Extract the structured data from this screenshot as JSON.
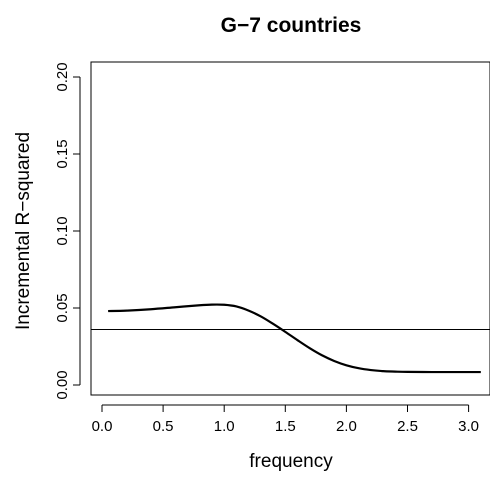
{
  "chart_data": {
    "type": "line",
    "title": "G−7 countries",
    "xlabel": "frequency",
    "ylabel": "Incremental R−squared",
    "xlim": [
      0,
      3.14159
    ],
    "ylim": [
      0,
      0.2
    ],
    "x_ticks": [
      0.0,
      0.5,
      1.0,
      1.5,
      2.0,
      2.5,
      3.0
    ],
    "x_tick_labels": [
      "0.0",
      "0.5",
      "1.0",
      "1.5",
      "2.0",
      "2.5",
      "3.0"
    ],
    "y_ticks": [
      0.0,
      0.05,
      0.1,
      0.15,
      0.2
    ],
    "y_tick_labels": [
      "0.00",
      "0.05",
      "0.10",
      "0.15",
      "0.20"
    ],
    "grid": false,
    "series": [
      {
        "color": "#000000",
        "x": [
          0.05,
          0.2,
          0.4,
          0.6,
          0.8,
          0.9,
          1.0,
          1.1,
          1.2,
          1.3,
          1.4,
          1.5,
          1.6,
          1.7,
          1.8,
          1.9,
          2.0,
          2.1,
          2.2,
          2.3,
          2.4,
          2.5,
          2.7,
          2.9,
          3.1
        ],
        "values": [
          0.048,
          0.0483,
          0.0492,
          0.0505,
          0.0518,
          0.0522,
          0.0521,
          0.051,
          0.0483,
          0.0445,
          0.0397,
          0.0345,
          0.0291,
          0.0239,
          0.0193,
          0.0156,
          0.0128,
          0.0109,
          0.0097,
          0.009,
          0.0087,
          0.0085,
          0.0084,
          0.0084,
          0.0084
        ]
      }
    ],
    "reference_line": {
      "y": 0.036,
      "color": "#000000"
    }
  }
}
